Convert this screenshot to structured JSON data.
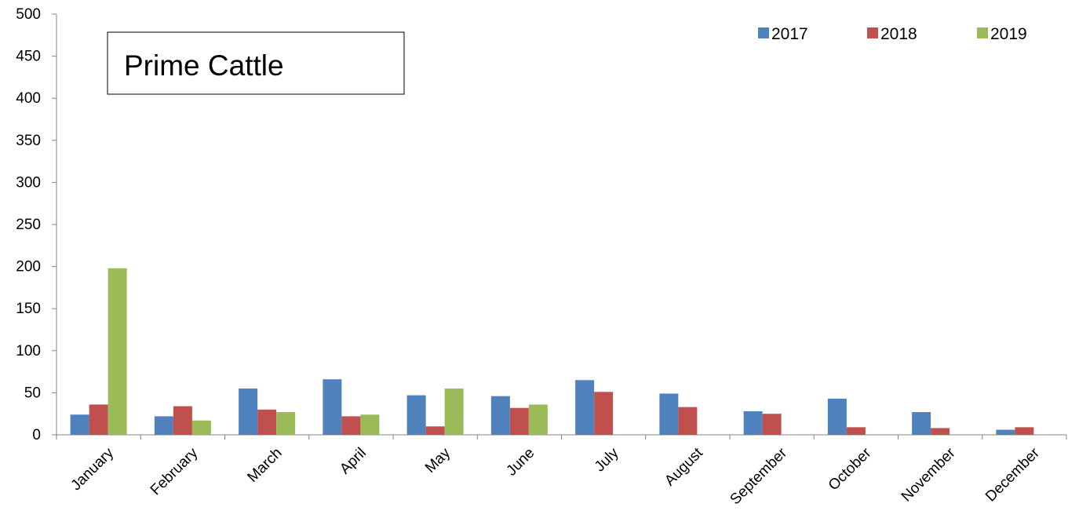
{
  "chart_data": {
    "type": "bar",
    "title": "Prime Cattle",
    "categories": [
      "January",
      "February",
      "March",
      "April",
      "May",
      "June",
      "July",
      "August",
      "September",
      "October",
      "November",
      "December"
    ],
    "series": [
      {
        "name": "2017",
        "color": "#4F81BD",
        "values": [
          24,
          22,
          55,
          66,
          47,
          46,
          65,
          49,
          28,
          43,
          27,
          6
        ]
      },
      {
        "name": "2018",
        "color": "#C0504D",
        "values": [
          36,
          34,
          30,
          22,
          10,
          32,
          51,
          33,
          25,
          9,
          8,
          9
        ]
      },
      {
        "name": "2019",
        "color": "#9BBB59",
        "values": [
          198,
          17,
          27,
          24,
          55,
          36,
          null,
          null,
          null,
          null,
          null,
          null
        ]
      }
    ],
    "ylim": [
      0,
      500
    ],
    "yticks": [
      0,
      50,
      100,
      150,
      200,
      250,
      300,
      350,
      400,
      450,
      500
    ],
    "xlabel": "",
    "ylabel": "",
    "grid": false,
    "legend_position": "top-right"
  }
}
